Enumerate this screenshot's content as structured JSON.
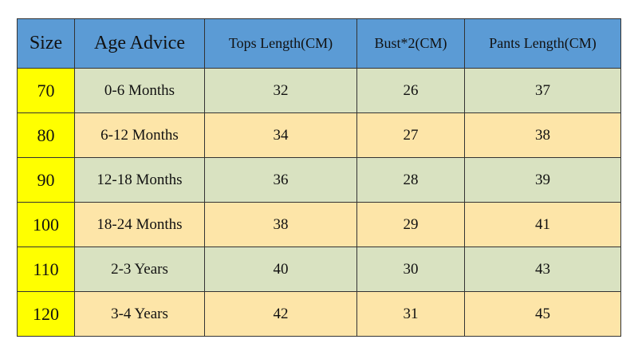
{
  "table": {
    "headers": {
      "size": "Size",
      "age": "Age Advice",
      "tops": "Tops Length(CM)",
      "bust": "Bust*2(CM)",
      "pants": "Pants Length(CM)"
    },
    "rows": [
      {
        "size": "70",
        "age": "0-6 Months",
        "tops": "32",
        "bust": "26",
        "pants": "37"
      },
      {
        "size": "80",
        "age": "6-12 Months",
        "tops": "34",
        "bust": "27",
        "pants": "38"
      },
      {
        "size": "90",
        "age": "12-18 Months",
        "tops": "36",
        "bust": "28",
        "pants": "39"
      },
      {
        "size": "100",
        "age": "18-24 Months",
        "tops": "38",
        "bust": "29",
        "pants": "41"
      },
      {
        "size": "110",
        "age": "2-3 Years",
        "tops": "40",
        "bust": "30",
        "pants": "43"
      },
      {
        "size": "120",
        "age": "3-4 Years",
        "tops": "42",
        "bust": "31",
        "pants": "45"
      }
    ]
  },
  "colors": {
    "header_bg": "#5b9bd5",
    "size_bg": "#ffff00",
    "row_green": "#d9e2c1",
    "row_tan": "#fde5a8"
  }
}
